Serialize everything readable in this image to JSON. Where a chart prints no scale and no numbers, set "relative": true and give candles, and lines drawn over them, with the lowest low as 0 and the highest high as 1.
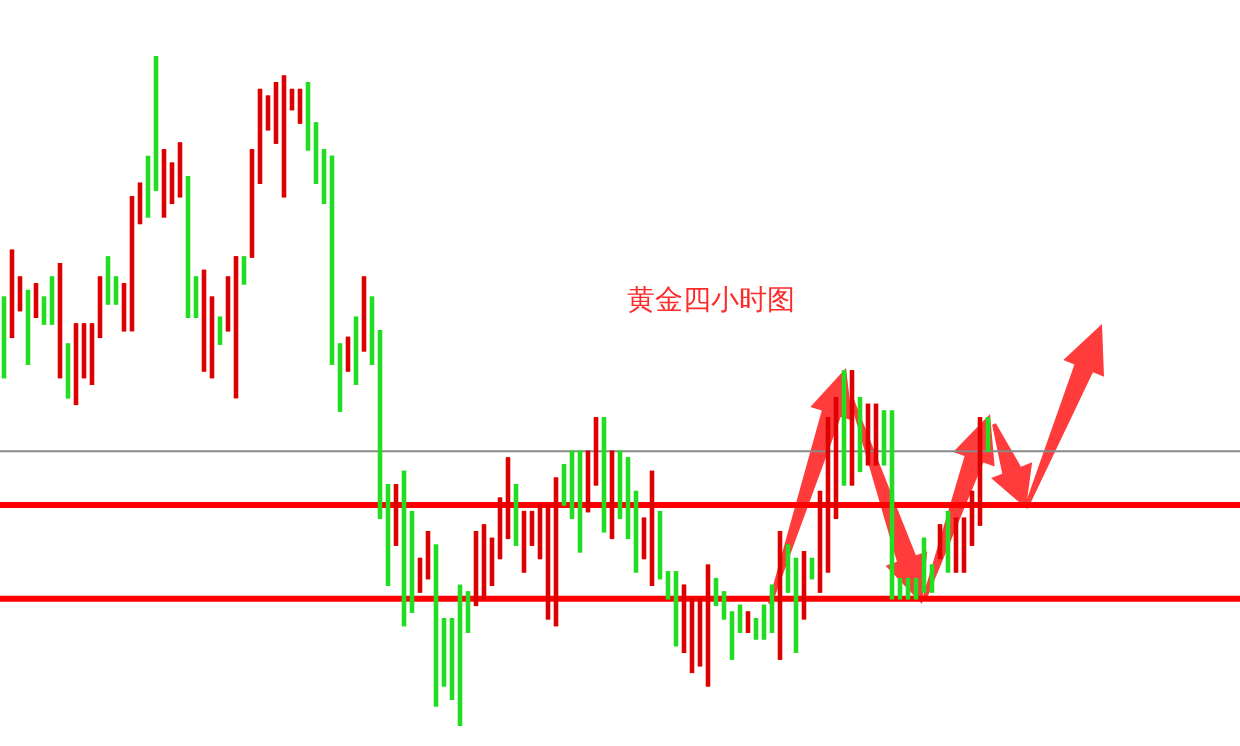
{
  "chart_data": {
    "type": "candlestick",
    "title": "黄金四小时图",
    "relative": true,
    "tick_labels": false,
    "legend": false,
    "categories": [
      null,
      null,
      null,
      null,
      null,
      null,
      null,
      null,
      null,
      null,
      null,
      null,
      null,
      null,
      null,
      null,
      null,
      null,
      null,
      null,
      null,
      null,
      null,
      null,
      null,
      null,
      null,
      null,
      null,
      null,
      null,
      null,
      null,
      null,
      null,
      null,
      null,
      null,
      null,
      null,
      null,
      null,
      null,
      null,
      null,
      null,
      null,
      null,
      null,
      null,
      null,
      null,
      null,
      null,
      null,
      null,
      null,
      null,
      null,
      null,
      null,
      null,
      null,
      null,
      null,
      null,
      null,
      null,
      null,
      null,
      null,
      null,
      null,
      null,
      null,
      null,
      null,
      null,
      null,
      null,
      null,
      null,
      null,
      null,
      null,
      null,
      null,
      null,
      null,
      null,
      null,
      null,
      null,
      null,
      null,
      null,
      null,
      null,
      null,
      null,
      null,
      null,
      null,
      null,
      null,
      null,
      null,
      null,
      null,
      null,
      null,
      null,
      null,
      null,
      null,
      null,
      null,
      null,
      null,
      null,
      null,
      null,
      null,
      null,
      null,
      null,
      null,
      null,
      null,
      null,
      null,
      null,
      null,
      null,
      null,
      null,
      null,
      null,
      null,
      null,
      null,
      null,
      null,
      null,
      null,
      null,
      null,
      null,
      null,
      null,
      null,
      null,
      null,
      null,
      null
    ],
    "ohlc": [
      [
        0.52,
        0.64,
        0.52,
        0.64
      ],
      [
        0.71,
        0.71,
        0.58,
        0.58
      ],
      [
        0.67,
        0.67,
        0.62,
        0.62
      ],
      [
        0.54,
        0.65,
        0.54,
        0.65
      ],
      [
        0.66,
        0.66,
        0.61,
        0.61
      ],
      [
        0.6,
        0.64,
        0.6,
        0.64
      ],
      [
        0.6,
        0.67,
        0.6,
        0.67
      ],
      [
        0.69,
        0.69,
        0.52,
        0.52
      ],
      [
        0.49,
        0.57,
        0.49,
        0.57
      ],
      [
        0.6,
        0.6,
        0.48,
        0.48
      ],
      [
        0.6,
        0.6,
        0.52,
        0.52
      ],
      [
        0.6,
        0.6,
        0.51,
        0.51
      ],
      [
        0.67,
        0.67,
        0.58,
        0.58
      ],
      [
        0.63,
        0.7,
        0.63,
        0.7
      ],
      [
        0.63,
        0.67,
        0.63,
        0.67
      ],
      [
        0.66,
        0.66,
        0.59,
        0.59
      ],
      [
        0.79,
        0.79,
        0.59,
        0.59
      ],
      [
        0.81,
        0.81,
        0.75,
        0.75
      ],
      [
        0.76,
        0.85,
        0.76,
        0.85
      ],
      [
        0.8,
        1.0,
        0.8,
        1.0
      ],
      [
        0.86,
        0.86,
        0.76,
        0.76
      ],
      [
        0.84,
        0.84,
        0.78,
        0.78
      ],
      [
        0.87,
        0.87,
        0.79,
        0.79
      ],
      [
        0.61,
        0.82,
        0.61,
        0.82
      ],
      [
        0.61,
        0.67,
        0.61,
        0.67
      ],
      [
        0.68,
        0.68,
        0.53,
        0.53
      ],
      [
        0.64,
        0.64,
        0.52,
        0.52
      ],
      [
        0.57,
        0.61,
        0.57,
        0.61
      ],
      [
        0.67,
        0.67,
        0.59,
        0.59
      ],
      [
        0.7,
        0.7,
        0.49,
        0.49
      ],
      [
        0.66,
        0.7,
        0.66,
        0.7
      ],
      [
        0.86,
        0.86,
        0.7,
        0.7
      ],
      [
        0.95,
        0.95,
        0.81,
        0.81
      ],
      [
        0.94,
        0.94,
        0.89,
        0.89
      ],
      [
        0.96,
        0.96,
        0.87,
        0.87
      ],
      [
        0.97,
        0.97,
        0.79,
        0.79
      ],
      [
        0.95,
        0.95,
        0.92,
        0.92
      ],
      [
        0.95,
        0.95,
        0.9,
        0.9
      ],
      [
        0.86,
        0.96,
        0.86,
        0.96
      ],
      [
        0.81,
        0.9,
        0.81,
        0.9
      ],
      [
        0.78,
        0.86,
        0.78,
        0.86
      ],
      [
        0.54,
        0.85,
        0.54,
        0.85
      ],
      [
        0.47,
        0.57,
        0.47,
        0.57
      ],
      [
        0.58,
        0.58,
        0.53,
        0.53
      ],
      [
        0.51,
        0.61,
        0.51,
        0.61
      ],
      [
        0.67,
        0.67,
        0.56,
        0.56
      ],
      [
        0.54,
        0.64,
        0.54,
        0.64
      ],
      [
        0.31,
        0.59,
        0.31,
        0.59
      ],
      [
        0.21,
        0.36,
        0.21,
        0.36
      ],
      [
        0.36,
        0.36,
        0.27,
        0.27
      ],
      [
        0.15,
        0.38,
        0.15,
        0.38
      ],
      [
        0.17,
        0.32,
        0.17,
        0.32
      ],
      [
        0.25,
        0.25,
        0.2,
        0.2
      ],
      [
        0.29,
        0.29,
        0.22,
        0.22
      ],
      [
        0.03,
        0.27,
        0.03,
        0.27
      ],
      [
        0.06,
        0.16,
        0.06,
        0.16
      ],
      [
        0.04,
        0.16,
        0.04,
        0.16
      ],
      [
        0.0,
        0.21,
        0.0,
        0.21
      ],
      [
        0.14,
        0.2,
        0.14,
        0.2
      ],
      [
        0.29,
        0.29,
        0.18,
        0.18
      ],
      [
        0.3,
        0.3,
        0.19,
        0.19
      ],
      [
        0.28,
        0.28,
        0.21,
        0.21
      ],
      [
        0.34,
        0.34,
        0.25,
        0.25
      ],
      [
        0.4,
        0.4,
        0.28,
        0.28
      ],
      [
        0.27,
        0.36,
        0.27,
        0.36
      ],
      [
        0.32,
        0.32,
        0.23,
        0.23
      ],
      [
        0.32,
        0.32,
        0.27,
        0.27
      ],
      [
        0.33,
        0.33,
        0.25,
        0.25
      ],
      [
        0.33,
        0.33,
        0.16,
        0.16
      ],
      [
        0.37,
        0.37,
        0.15,
        0.15
      ],
      [
        0.33,
        0.39,
        0.33,
        0.39
      ],
      [
        0.31,
        0.41,
        0.31,
        0.41
      ],
      [
        0.26,
        0.41,
        0.26,
        0.41
      ],
      [
        0.41,
        0.41,
        0.32,
        0.32
      ],
      [
        0.46,
        0.46,
        0.36,
        0.36
      ],
      [
        0.29,
        0.46,
        0.29,
        0.46
      ],
      [
        0.41,
        0.41,
        0.28,
        0.28
      ],
      [
        0.31,
        0.41,
        0.31,
        0.41
      ],
      [
        0.28,
        0.4,
        0.28,
        0.4
      ],
      [
        0.23,
        0.35,
        0.23,
        0.35
      ],
      [
        0.31,
        0.31,
        0.25,
        0.25
      ],
      [
        0.38,
        0.38,
        0.21,
        0.21
      ],
      [
        0.22,
        0.32,
        0.22,
        0.32
      ],
      [
        0.19,
        0.23,
        0.19,
        0.23
      ],
      [
        0.12,
        0.23,
        0.12,
        0.23
      ],
      [
        0.21,
        0.21,
        0.11,
        0.11
      ],
      [
        0.19,
        0.19,
        0.08,
        0.08
      ],
      [
        0.19,
        0.19,
        0.09,
        0.09
      ],
      [
        0.24,
        0.24,
        0.06,
        0.06
      ],
      [
        0.18,
        0.22,
        0.18,
        0.22
      ],
      [
        0.16,
        0.2,
        0.16,
        0.2
      ],
      [
        0.1,
        0.17,
        0.1,
        0.17
      ],
      [
        0.14,
        0.18,
        0.14,
        0.18
      ],
      [
        0.17,
        0.17,
        0.14,
        0.14
      ],
      [
        0.13,
        0.16,
        0.13,
        0.16
      ],
      [
        0.13,
        0.18,
        0.13,
        0.18
      ],
      [
        0.14,
        0.21,
        0.14,
        0.21
      ],
      [
        0.29,
        0.29,
        0.1,
        0.1
      ],
      [
        0.2,
        0.27,
        0.2,
        0.27
      ],
      [
        0.11,
        0.25,
        0.11,
        0.25
      ],
      [
        0.26,
        0.26,
        0.16,
        0.16
      ],
      [
        0.22,
        0.25,
        0.22,
        0.25
      ],
      [
        0.35,
        0.35,
        0.2,
        0.2
      ],
      [
        0.46,
        0.46,
        0.23,
        0.23
      ],
      [
        0.49,
        0.49,
        0.31,
        0.31
      ],
      [
        0.36,
        0.53,
        0.36,
        0.53
      ],
      [
        0.53,
        0.53,
        0.36,
        0.36
      ],
      [
        0.38,
        0.49,
        0.38,
        0.49
      ],
      [
        0.48,
        0.48,
        0.39,
        0.39
      ],
      [
        0.48,
        0.48,
        0.39,
        0.39
      ],
      [
        0.39,
        0.47,
        0.39,
        0.47
      ],
      [
        0.19,
        0.47,
        0.19,
        0.47
      ],
      [
        0.19,
        0.22,
        0.19,
        0.22
      ],
      [
        0.19,
        0.22,
        0.19,
        0.22
      ],
      [
        0.19,
        0.22,
        0.19,
        0.22
      ],
      [
        0.2,
        0.28,
        0.2,
        0.28
      ],
      [
        0.2,
        0.24,
        0.2,
        0.24
      ],
      [
        0.3,
        0.3,
        0.25,
        0.25
      ],
      [
        0.23,
        0.32,
        0.23,
        0.32
      ],
      [
        0.31,
        0.31,
        0.23,
        0.23
      ],
      [
        0.31,
        0.31,
        0.23,
        0.23
      ],
      [
        0.35,
        0.35,
        0.27,
        0.27
      ],
      [
        0.46,
        0.46,
        0.3,
        0.3
      ],
      [
        0.41,
        0.46,
        0.41,
        0.46
      ],
      null,
      null,
      null,
      null,
      null,
      null,
      null,
      null,
      null,
      null,
      null,
      null,
      null,
      null,
      null,
      null,
      null,
      null,
      null,
      null,
      null,
      null,
      null,
      null,
      null,
      null,
      null,
      null,
      null,
      null,
      null
    ],
    "colors": [
      "#22dd22",
      "#dd0000",
      "#dd0000",
      "#22dd22",
      "#dd0000",
      "#22dd22",
      "#22dd22",
      "#dd0000",
      "#22dd22",
      "#dd0000",
      "#dd0000",
      "#dd0000",
      "#dd0000",
      "#22dd22",
      "#22dd22",
      "#dd0000",
      "#dd0000",
      "#dd0000",
      "#22dd22",
      "#22dd22",
      "#dd0000",
      "#dd0000",
      "#dd0000",
      "#22dd22",
      "#22dd22",
      "#dd0000",
      "#dd0000",
      "#22dd22",
      "#dd0000",
      "#dd0000",
      "#22dd22",
      "#dd0000",
      "#dd0000",
      "#dd0000",
      "#dd0000",
      "#dd0000",
      "#dd0000",
      "#dd0000",
      "#22dd22",
      "#22dd22",
      "#22dd22",
      "#22dd22",
      "#22dd22",
      "#dd0000",
      "#22dd22",
      "#dd0000",
      "#22dd22",
      "#22dd22",
      "#22dd22",
      "#dd0000",
      "#22dd22",
      "#22dd22",
      "#dd0000",
      "#dd0000",
      "#22dd22",
      "#22dd22",
      "#22dd22",
      "#22dd22",
      "#22dd22",
      "#dd0000",
      "#dd0000",
      "#dd0000",
      "#dd0000",
      "#dd0000",
      "#22dd22",
      "#dd0000",
      "#dd0000",
      "#dd0000",
      "#dd0000",
      "#dd0000",
      "#22dd22",
      "#22dd22",
      "#22dd22",
      "#dd0000",
      "#dd0000",
      "#22dd22",
      "#dd0000",
      "#22dd22",
      "#22dd22",
      "#22dd22",
      "#dd0000",
      "#dd0000",
      "#22dd22",
      "#22dd22",
      "#22dd22",
      "#dd0000",
      "#dd0000",
      "#dd0000",
      "#dd0000",
      "#22dd22",
      "#22dd22",
      "#22dd22",
      "#22dd22",
      "#dd0000",
      "#22dd22",
      "#22dd22",
      "#22dd22",
      "#dd0000",
      "#22dd22",
      "#22dd22",
      "#dd0000",
      "#22dd22",
      "#dd0000",
      "#dd0000",
      "#dd0000",
      "#22dd22",
      "#dd0000",
      "#22dd22",
      "#dd0000",
      "#dd0000",
      "#22dd22",
      "#22dd22",
      "#22dd22",
      "#22dd22",
      "#22dd22",
      "#22dd22",
      "#22dd22",
      "#dd0000",
      "#22dd22",
      "#dd0000",
      "#dd0000",
      "#dd0000",
      "#dd0000",
      "#22dd22",
      null,
      null,
      null,
      null,
      null,
      null,
      null,
      null,
      null,
      null,
      null,
      null,
      null,
      null,
      null,
      null,
      null,
      null,
      null,
      null,
      null,
      null,
      null,
      null,
      null,
      null,
      null,
      null,
      null,
      null,
      null
    ],
    "ref_lines": [
      {
        "axis": "y",
        "value": 0.41,
        "color": "#888888"
      },
      {
        "axis": "y",
        "value": 0.33,
        "color": "#ff0000"
      },
      {
        "axis": "y",
        "value": 0.19,
        "color": "#ff0000"
      }
    ]
  }
}
